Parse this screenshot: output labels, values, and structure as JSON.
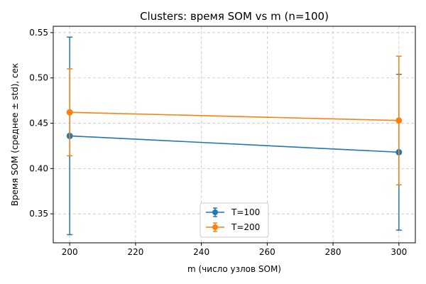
{
  "chart_data": {
    "type": "line",
    "title": "Clusters: время SOM vs m (n=100)",
    "xlabel": "m (число узлов SOM)",
    "ylabel": "Время SOM (среднее ± std), сек",
    "xlim": [
      195,
      305
    ],
    "ylim": [
      0.318,
      0.557
    ],
    "xticks": [
      200,
      220,
      240,
      260,
      280,
      300
    ],
    "yticks": [
      0.35,
      0.4,
      0.45,
      0.5,
      0.55
    ],
    "ytick_labels": [
      "0.35",
      "0.40",
      "0.45",
      "0.50",
      "0.55"
    ],
    "grid": true,
    "legend_position": "lower center",
    "series": [
      {
        "name": "T=100",
        "color": "#1f77b4",
        "x": [
          200,
          300
        ],
        "y": [
          0.436,
          0.418
        ],
        "err": [
          0.109,
          0.086
        ]
      },
      {
        "name": "T=200",
        "color": "#ff7f0e",
        "x": [
          200,
          300
        ],
        "y": [
          0.462,
          0.453
        ],
        "err": [
          0.048,
          0.071
        ]
      }
    ]
  }
}
